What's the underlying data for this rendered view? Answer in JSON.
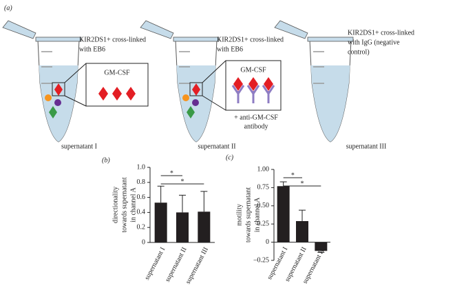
{
  "diagram": {
    "panel_label": "(a)",
    "tubes": [
      {
        "label": [
          "KIR2DS1+ cross-linked",
          "with EB6"
        ],
        "inset_label": "GM-CSF",
        "caption": "supernatant I"
      },
      {
        "label": [
          "KIR2DS1+ cross-linked",
          "with EB6"
        ],
        "inset_label": "GM-CSF",
        "note": [
          "+ anti-GM-CSF",
          "antibody"
        ],
        "caption": "supernatant II"
      },
      {
        "label": [
          "KIR2DS1+ cross-linked",
          "with IgG (negative",
          "control)"
        ],
        "caption": "supernatant III"
      }
    ]
  },
  "chart_data": [
    {
      "type": "bar",
      "panel_label": "(b)",
      "ylabel": [
        "directionality",
        "towards supernatant",
        "in channel A"
      ],
      "categories": [
        "supernatant I",
        "supernatant II",
        "supernatant III"
      ],
      "values": [
        0.53,
        0.4,
        0.41
      ],
      "errors": [
        0.22,
        0.23,
        0.27
      ],
      "color": "#231f20",
      "ylim": [
        0,
        1
      ],
      "yticks": [
        0,
        0.2,
        0.4,
        0.6,
        0.8,
        {
          "value": 1,
          "label": "1.0"
        }
      ],
      "annotations": [
        "*",
        "*"
      ]
    },
    {
      "type": "bar",
      "panel_label": "(c)",
      "ylabel": [
        "motility",
        "towards supernatant",
        "in channel A"
      ],
      "categories": [
        "supernatant I",
        "supernatant II",
        "supernatant III"
      ],
      "values": [
        0.77,
        0.29,
        -0.12
      ],
      "errors": [
        0.06,
        0.15,
        0.02
      ],
      "color": "#231f20",
      "ylim": [
        -0.25,
        1
      ],
      "yticks": [
        {
          "value": -0.25,
          "label": "–0.25"
        },
        0,
        0.25,
        {
          "value": 0.5,
          "label": "0.50"
        },
        0.75,
        {
          "value": 1,
          "label": "1.00"
        }
      ],
      "annotations": [
        "*",
        "*"
      ]
    }
  ]
}
